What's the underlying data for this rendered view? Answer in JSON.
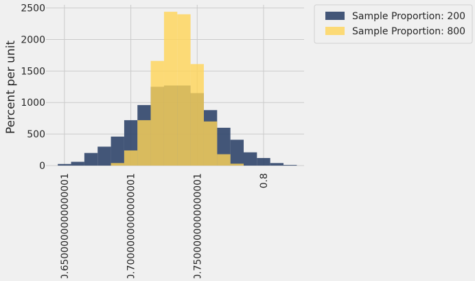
{
  "chart_data": {
    "type": "bar",
    "ylabel": "Percent per unit",
    "xlabel": "",
    "xlim": [
      0.6361,
      0.8305
    ],
    "ylim": [
      0,
      2550
    ],
    "grid": true,
    "legend_position": "outside-right-top",
    "x_tick_values": [
      0.65,
      0.7,
      0.75,
      0.8
    ],
    "x_tick_labels": [
      "0.6500000000000001",
      "0.7000000000000001",
      "0.7500000000000001",
      "0.8"
    ],
    "y_tick_values": [
      0,
      500,
      1000,
      1500,
      2000,
      2500
    ],
    "y_tick_labels": [
      "0",
      "500",
      "1000",
      "1500",
      "2000",
      "2500"
    ],
    "bin_edges": [
      0.645,
      0.655,
      0.665,
      0.675,
      0.685,
      0.695,
      0.705,
      0.715,
      0.725,
      0.735,
      0.745,
      0.755,
      0.765,
      0.775,
      0.785,
      0.795,
      0.805,
      0.815,
      0.825
    ],
    "series": [
      {
        "name": "Sample Proportion: 200",
        "color": "#30456a",
        "values": [
          25,
          60,
          200,
          300,
          460,
          720,
          960,
          1250,
          1270,
          1270,
          1150,
          880,
          600,
          410,
          210,
          120,
          40,
          10
        ]
      },
      {
        "name": "Sample Proportion: 800",
        "color": "#ffd557",
        "values": [
          0,
          0,
          0,
          0,
          40,
          240,
          720,
          1660,
          2440,
          2400,
          1610,
          700,
          180,
          30,
          0,
          0,
          0,
          0
        ]
      }
    ]
  }
}
